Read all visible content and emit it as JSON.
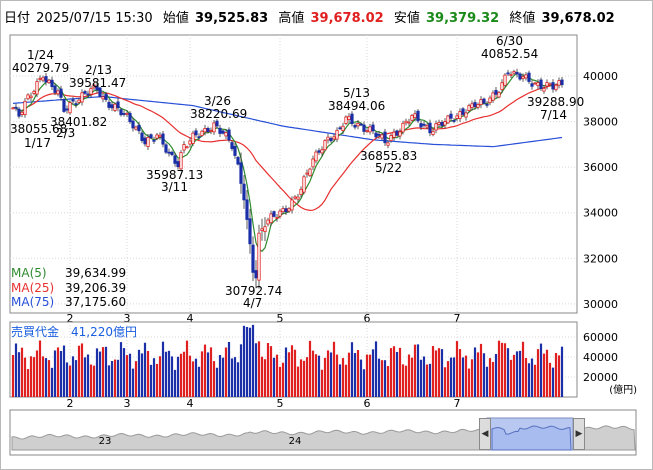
{
  "header": {
    "date_label": "日付",
    "datetime": "2025/07/15 15:30",
    "open_label": "始値",
    "open": "39,525.83",
    "high_label": "高値",
    "high": "39,678.02",
    "low_label": "安値",
    "low": "39,379.32",
    "close_label": "終値",
    "close": "39,678.02"
  },
  "colors": {
    "up": "#e02020",
    "down": "#1a2fa8",
    "ma5": "#2f8a2f",
    "ma25": "#e83030",
    "ma75": "#2850d8",
    "high": "#e02020",
    "low": "#1a8a1a",
    "vol_up": "#e02020",
    "vol_down": "#1a2fa8",
    "sb_fill": "#b8c8f0"
  },
  "legend": [
    {
      "name": "MA(5)",
      "value": "39,634.99",
      "color": "#2f8a2f"
    },
    {
      "name": "MA(25)",
      "value": "39,206.39",
      "color": "#e83030"
    },
    {
      "name": "MA(75)",
      "value": "37,175.60",
      "color": "#2850d8"
    }
  ],
  "volume_label": "売買代金　41,220億円",
  "volume_unit": "(億円)",
  "chart_data": {
    "type": "candlestick",
    "y_ticks": [
      30000,
      32000,
      34000,
      36000,
      38000,
      40000
    ],
    "vol_ticks": [
      20000,
      40000,
      60000
    ],
    "month_labels": [
      "2",
      "3",
      "4",
      "5",
      "6",
      "7"
    ],
    "year_labels": [
      "23",
      "24"
    ],
    "annotations": [
      {
        "label": "1/24",
        "value": "40279.79"
      },
      {
        "label": "1/17",
        "value": "38055.68"
      },
      {
        "label": "2/3",
        "value": "38401.82"
      },
      {
        "label": "2/13",
        "value": "39581.47"
      },
      {
        "label": "3/11",
        "value": "35987.13"
      },
      {
        "label": "3/26",
        "value": "38220.69"
      },
      {
        "label": "4/7",
        "value": "30792.74"
      },
      {
        "label": "5/13",
        "value": "38494.06"
      },
      {
        "label": "5/22",
        "value": "36855.83"
      },
      {
        "label": "6/30",
        "value": "40852.54"
      },
      {
        "label": "7/14",
        "value": "39288.90"
      }
    ],
    "price_anchors": [
      [
        0,
        38600
      ],
      [
        2,
        38200
      ],
      [
        5,
        39000
      ],
      [
        8,
        39700
      ],
      [
        10,
        40150
      ],
      [
        11,
        39800
      ],
      [
        15,
        39200
      ],
      [
        17,
        38500
      ],
      [
        20,
        38900
      ],
      [
        25,
        39300
      ],
      [
        28,
        39400
      ],
      [
        30,
        39000
      ],
      [
        35,
        38600
      ],
      [
        40,
        37800
      ],
      [
        44,
        37200
      ],
      [
        48,
        37400
      ],
      [
        52,
        36500
      ],
      [
        55,
        36200
      ],
      [
        57,
        37000
      ],
      [
        60,
        37300
      ],
      [
        64,
        37500
      ],
      [
        67,
        37900
      ],
      [
        70,
        37600
      ],
      [
        73,
        36900
      ],
      [
        75,
        35900
      ],
      [
        77,
        34700
      ],
      [
        79,
        32600
      ],
      [
        80,
        31600
      ],
      [
        81,
        31300
      ],
      [
        82,
        33000
      ],
      [
        84,
        33500
      ],
      [
        87,
        33800
      ],
      [
        90,
        34100
      ],
      [
        93,
        34500
      ],
      [
        96,
        35000
      ],
      [
        99,
        36000
      ],
      [
        102,
        36800
      ],
      [
        105,
        37300
      ],
      [
        108,
        37400
      ],
      [
        111,
        38100
      ],
      [
        115,
        37900
      ],
      [
        118,
        37700
      ],
      [
        121,
        37400
      ],
      [
        124,
        37100
      ],
      [
        127,
        37500
      ],
      [
        130,
        37800
      ],
      [
        133,
        38200
      ],
      [
        136,
        37900
      ],
      [
        139,
        37700
      ],
      [
        142,
        37900
      ],
      [
        145,
        38000
      ],
      [
        148,
        38200
      ],
      [
        151,
        38600
      ],
      [
        154,
        38800
      ],
      [
        157,
        38700
      ],
      [
        160,
        39100
      ],
      [
        163,
        39700
      ],
      [
        165,
        40300
      ],
      [
        167,
        40000
      ],
      [
        170,
        39900
      ],
      [
        174,
        39700
      ],
      [
        177,
        39600
      ],
      [
        180,
        39500
      ],
      [
        183,
        39600
      ]
    ],
    "ma75_anchors": [
      [
        0,
        38800
      ],
      [
        30,
        39100
      ],
      [
        60,
        38700
      ],
      [
        90,
        37800
      ],
      [
        120,
        37200
      ],
      [
        140,
        37000
      ],
      [
        160,
        36900
      ],
      [
        183,
        37300
      ]
    ],
    "n_days": 184
  }
}
